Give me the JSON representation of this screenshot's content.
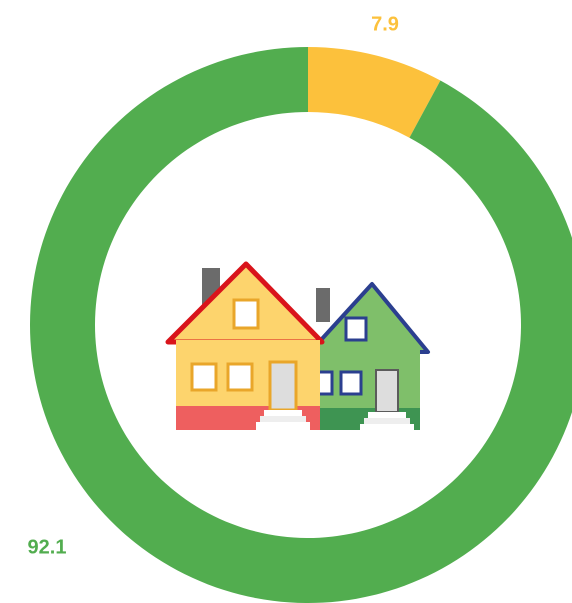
{
  "chart_data": {
    "type": "donut",
    "values": [
      7.9,
      92.1
    ],
    "colors": [
      "#fcc13c",
      "#52ad4f"
    ]
  }
}
